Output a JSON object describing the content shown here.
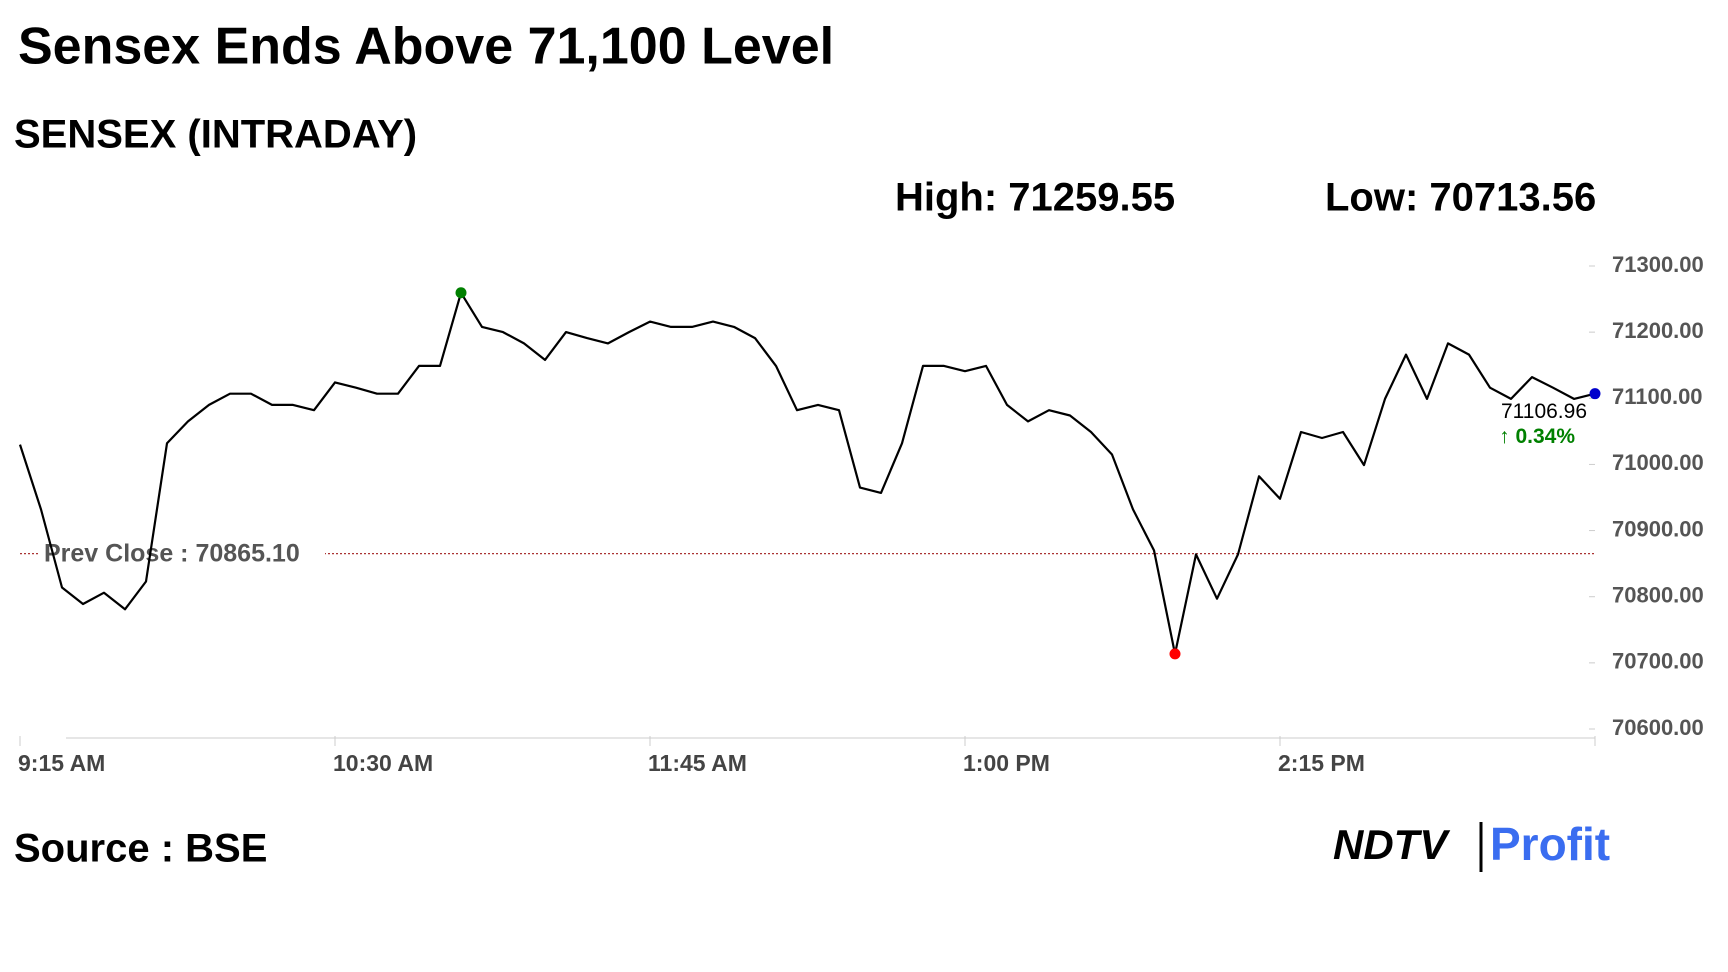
{
  "chart_data": {
    "type": "line",
    "title": "Sensex Ends Above 71,100 Level",
    "subtitle": "SENSEX (INTRADAY)",
    "high_label": "High: 71259.55",
    "low_label": "Low: 70713.56",
    "source": "Source : BSE",
    "logo_left": "NDTV",
    "logo_right": "Profit",
    "prev_close": 70865.1,
    "prev_close_label": "Prev Close : 70865.10",
    "close_label": "71106.96",
    "change_label": "↑ 0.34%",
    "color": "#000000",
    "categories": [
      "9:15 AM",
      null,
      null,
      null,
      null,
      null,
      null,
      null,
      null,
      null,
      null,
      null,
      null,
      null,
      null,
      "10:30 AM",
      null,
      null,
      null,
      null,
      null,
      null,
      null,
      null,
      null,
      null,
      null,
      null,
      null,
      null,
      "11:45 AM",
      null,
      null,
      null,
      null,
      null,
      null,
      null,
      null,
      null,
      null,
      null,
      null,
      null,
      null,
      "1:00 PM",
      null,
      null,
      null,
      null,
      null,
      null,
      null,
      null,
      null,
      null,
      null,
      null,
      null,
      null,
      "2:15 PM",
      null,
      null,
      null,
      null,
      null,
      null,
      null,
      null,
      null,
      null,
      null,
      null,
      null,
      null,
      null
    ],
    "values": [
      71030,
      70932,
      70814,
      70789,
      70806,
      70781,
      70823,
      71032,
      71065,
      71090,
      71107,
      71107,
      71090,
      71090,
      71082,
      71124,
      71116,
      71107,
      71107,
      71149,
      71149,
      71259.55,
      71208,
      71200,
      71183,
      71158,
      71200,
      71191,
      71183,
      71200,
      71216,
      71208,
      71208,
      71216,
      71208,
      71191,
      71149,
      71082,
      71090,
      71082,
      70965,
      70957,
      71032,
      71149,
      71149,
      71141,
      71149,
      71090,
      71065,
      71082,
      71074,
      71049,
      71015,
      70932,
      70870,
      70713.56,
      70864,
      70797,
      70864,
      70982,
      70948,
      71049,
      71040,
      71049,
      70999,
      71099,
      71166,
      71099,
      71183,
      71166,
      71116,
      71099,
      71132,
      71116,
      71099,
      71106.96
    ],
    "ylim": [
      70600,
      71300
    ],
    "yticks": [
      {
        "value": 70600,
        "label": "70600.00"
      },
      {
        "value": 70700,
        "label": "70700.00"
      },
      {
        "value": 70800,
        "label": "70800.00"
      },
      {
        "value": 70900,
        "label": "70900.00"
      },
      {
        "value": 71000,
        "label": "71000.00"
      },
      {
        "value": 71100,
        "label": "71100.00"
      },
      {
        "value": 71200,
        "label": "71200.00"
      },
      {
        "value": 71300,
        "label": "71300.00"
      }
    ],
    "grid": false
  }
}
